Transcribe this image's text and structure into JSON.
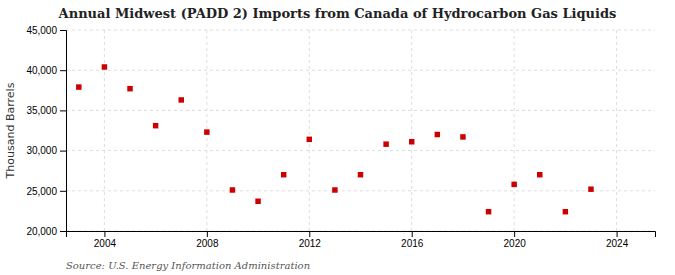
{
  "chart_data": {
    "type": "scatter",
    "title": "Annual Midwest (PADD 2) Imports from Canada of Hydrocarbon Gas Liquids",
    "ylabel": "Thousand Barrels",
    "source": "Source: U.S. Energy Information Administration",
    "x": [
      2003,
      2004,
      2005,
      2006,
      2007,
      2008,
      2009,
      2010,
      2011,
      2012,
      2013,
      2014,
      2015,
      2016,
      2017,
      2018,
      2019,
      2020,
      2021,
      2022,
      2023
    ],
    "values": [
      37900,
      40400,
      37700,
      33100,
      36300,
      32300,
      25100,
      23700,
      27000,
      31400,
      25100,
      27000,
      30800,
      31100,
      32000,
      31700,
      22400,
      25800,
      27000,
      22400,
      25200
    ],
    "color": "#cc0000",
    "marker": "square",
    "xlim": [
      2002.5,
      2025.5
    ],
    "xticks": [
      2004,
      2008,
      2012,
      2016,
      2020,
      2024
    ],
    "ylim": [
      20000,
      45000
    ],
    "yticks": [
      {
        "value": 20000,
        "label": "20,000"
      },
      {
        "value": 25000,
        "label": "25,000"
      },
      {
        "value": 30000,
        "label": "30,000"
      },
      {
        "value": 35000,
        "label": "35,000"
      },
      {
        "value": 40000,
        "label": "40,000"
      },
      {
        "value": 45000,
        "label": "45,000"
      }
    ],
    "grid": true
  }
}
